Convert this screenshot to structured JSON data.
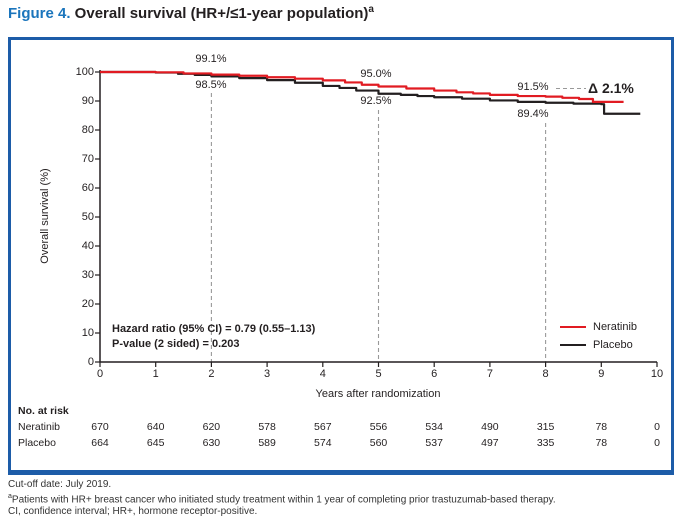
{
  "figure": {
    "title_prefix": "Figure 4.",
    "title_rest": " Overall survival (HR+/≤1-year population)",
    "title_superscript": "a"
  },
  "colors": {
    "border_blue": "#1d5ca8",
    "title_blue": "#1b75bc",
    "neratinib_red": "#e11b22",
    "placebo_black": "#231f20",
    "guide_gray": "#999999"
  },
  "chart_data": {
    "type": "line",
    "kind": "kaplan-meier-step",
    "title": "Overall survival (HR+/≤1-year population)",
    "xlabel": "Years after randomization",
    "ylabel": "Overall survival (%)",
    "xlim": [
      0,
      10
    ],
    "ylim": [
      0,
      100
    ],
    "x_ticks": [
      0,
      1,
      2,
      3,
      4,
      5,
      6,
      7,
      8,
      9,
      10
    ],
    "y_ticks": [
      0,
      10,
      20,
      30,
      40,
      50,
      60,
      70,
      80,
      90,
      100
    ],
    "grid": false,
    "legend_position": "lower right",
    "guide_years": [
      2,
      5,
      8
    ],
    "series": [
      {
        "name": "Placebo",
        "color": "#231f20",
        "points": [
          [
            0,
            100
          ],
          [
            0.6,
            100
          ],
          [
            1,
            99.8
          ],
          [
            1.4,
            99.4
          ],
          [
            1.7,
            99.0
          ],
          [
            2,
            98.5
          ],
          [
            2.5,
            97.9
          ],
          [
            3,
            97.2
          ],
          [
            3.5,
            96.3
          ],
          [
            4,
            95.2
          ],
          [
            4.3,
            94.5
          ],
          [
            4.6,
            93.6
          ],
          [
            5,
            92.5
          ],
          [
            5.4,
            92.1
          ],
          [
            5.7,
            91.7
          ],
          [
            6,
            91.3
          ],
          [
            6.5,
            90.8
          ],
          [
            7,
            90.2
          ],
          [
            7.5,
            89.7
          ],
          [
            8,
            89.4
          ],
          [
            8.5,
            89.1
          ],
          [
            9.0,
            88.9
          ],
          [
            9.05,
            85.6
          ],
          [
            9.7,
            85.6
          ]
        ]
      },
      {
        "name": "Neratinib",
        "color": "#e11b22",
        "points": [
          [
            0,
            100
          ],
          [
            0.7,
            100
          ],
          [
            1,
            99.9
          ],
          [
            1.5,
            99.5
          ],
          [
            2,
            99.1
          ],
          [
            2.5,
            98.7
          ],
          [
            3,
            98.2
          ],
          [
            3.5,
            97.7
          ],
          [
            4,
            97.1
          ],
          [
            4.4,
            96.4
          ],
          [
            4.7,
            95.6
          ],
          [
            5,
            95.0
          ],
          [
            5.5,
            94.3
          ],
          [
            6,
            93.6
          ],
          [
            6.4,
            93.0
          ],
          [
            6.7,
            92.6
          ],
          [
            7,
            92.1
          ],
          [
            7.5,
            91.7
          ],
          [
            8,
            91.5
          ],
          [
            8.3,
            91.1
          ],
          [
            8.6,
            90.7
          ],
          [
            8.85,
            89.7
          ],
          [
            9.4,
            89.7
          ]
        ]
      }
    ],
    "annotations": {
      "year2_top": "99.1%",
      "year2_bottom": "98.5%",
      "year5_top": "95.0%",
      "year5_bottom": "92.5%",
      "year8_top": "91.5%",
      "year8_bottom": "89.4%",
      "delta": "Δ 2.1%"
    },
    "stats": {
      "hazard_ratio": "Hazard ratio (95% CI) = 0.79 (0.55–1.13)",
      "p_value": "P-value (2 sided) = 0.203"
    },
    "legend": [
      {
        "label": "Neratinib",
        "color": "#e11b22"
      },
      {
        "label": "Placebo",
        "color": "#231f20"
      }
    ],
    "at_risk": {
      "title": "No. at risk",
      "rows": [
        {
          "label": "Neratinib",
          "values": [
            "670",
            "640",
            "620",
            "578",
            "567",
            "556",
            "534",
            "490",
            "315",
            "78",
            "0"
          ]
        },
        {
          "label": "Placebo",
          "values": [
            "664",
            "645",
            "630",
            "589",
            "574",
            "560",
            "537",
            "497",
            "335",
            "78",
            "0"
          ]
        }
      ]
    }
  },
  "footer": {
    "line1": "Cut-off date: July 2019.",
    "line2_superscript": "a",
    "line2": "Patients with HR+ breast cancer who initiated study treatment within 1 year of completing prior trastuzumab-based therapy.",
    "line3": "CI, confidence interval; HR+, hormone receptor-positive."
  }
}
